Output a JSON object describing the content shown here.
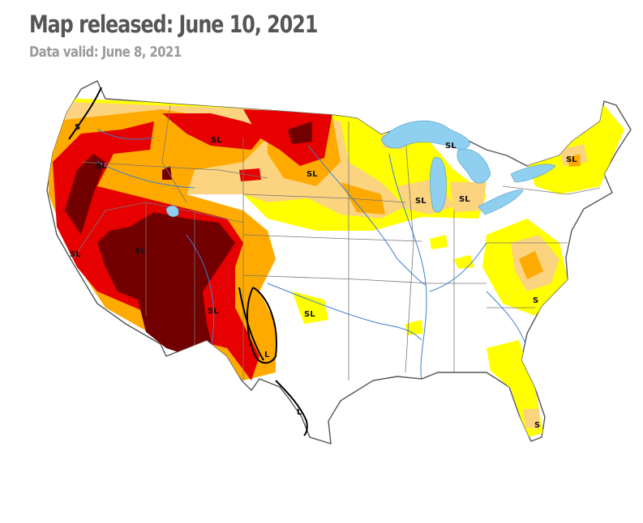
{
  "header": {
    "title": "Map released: June 10, 2021",
    "subtitle": "Data valid: June 8, 2021"
  },
  "colors": {
    "D0": "#ffff00",
    "D1": "#fcd37f",
    "D2": "#ffaa00",
    "D3": "#e60000",
    "D4": "#730000",
    "water": "#8fd0f0",
    "rivers": "#3a7fd0",
    "borders": "#666666"
  },
  "impact_labels": [
    {
      "text": "S"
    },
    {
      "text": "SL"
    },
    {
      "text": "SL"
    },
    {
      "text": "SL"
    },
    {
      "text": "SL"
    },
    {
      "text": "SL"
    },
    {
      "text": "SL"
    },
    {
      "text": "SL"
    },
    {
      "text": "SL"
    },
    {
      "text": "SL"
    },
    {
      "text": "SL"
    },
    {
      "text": "SL"
    },
    {
      "text": "L"
    },
    {
      "text": "L"
    },
    {
      "text": "S"
    },
    {
      "text": "S"
    }
  ]
}
